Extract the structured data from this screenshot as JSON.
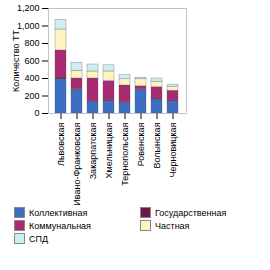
{
  "chart_data": {
    "type": "bar",
    "stacked": true,
    "y_label": "Количество ТТ",
    "categories": [
      "Львовская",
      "Ивано-Франковская",
      "Закарпатская",
      "Хмельницкая",
      "Тернопольская",
      "Ровенская",
      "Волынская",
      "Черновицкая"
    ],
    "series": [
      {
        "name": "Коллективная",
        "color": "#3b6ec4",
        "values": [
          390,
          270,
          130,
          140,
          120,
          270,
          160,
          140
        ]
      },
      {
        "name": "Государственная",
        "color": "#6e1846",
        "values": [
          20,
          10,
          10,
          10,
          10,
          10,
          10,
          10
        ]
      },
      {
        "name": "Коммунальная",
        "color": "#a82a72",
        "values": [
          310,
          120,
          260,
          220,
          190,
          30,
          130,
          110
        ]
      },
      {
        "name": "Частная",
        "color": "#fff3c0",
        "values": [
          240,
          90,
          80,
          110,
          70,
          80,
          60,
          40
        ]
      },
      {
        "name": "СПД",
        "color": "#cdeef2",
        "values": [
          110,
          90,
          80,
          70,
          50,
          20,
          40,
          30
        ]
      }
    ],
    "ylim": [
      0,
      1200
    ],
    "yticks": [
      0,
      200,
      400,
      600,
      800,
      1000,
      1200
    ],
    "grid": false,
    "legend": "bottom"
  }
}
